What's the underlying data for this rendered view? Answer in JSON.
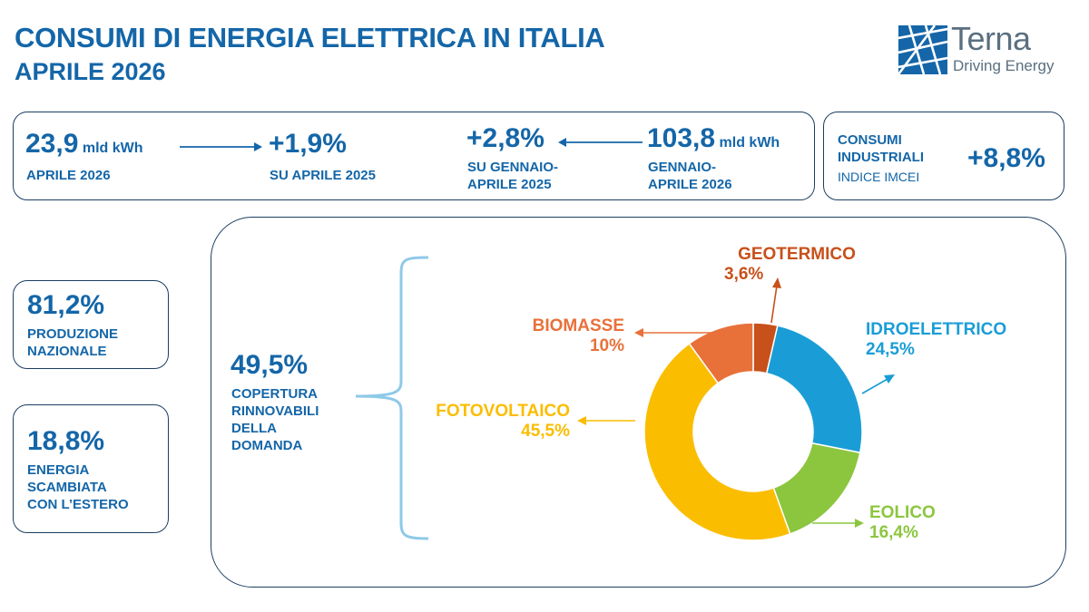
{
  "header": {
    "title": "CONSUMI DI ENERGIA ELETTRICA IN ITALIA",
    "subtitle": "APRILE 2026"
  },
  "logo": {
    "word": "Terna",
    "tagline": "Driving Energy"
  },
  "kpi_top": {
    "monthly": {
      "value": "23,9",
      "unit": "mld kWh",
      "label": "APRILE 2026"
    },
    "monthly_change": {
      "value": "+1,9%",
      "label": "SU APRILE 2025"
    },
    "ytd_change": {
      "value": "+2,8%",
      "label_line1": "SU GENNAIO-",
      "label_line2": "APRILE 2025"
    },
    "ytd": {
      "value": "103,8",
      "unit": "mld kWh",
      "label_line1": "GENNAIO-",
      "label_line2": "APRILE 2026"
    }
  },
  "industrial": {
    "label_line1": "CONSUMI",
    "label_line2": "INDUSTRIALI",
    "sublabel": "INDICE IMCEI",
    "value": "+8,8%"
  },
  "national": {
    "value": "81,2%",
    "label_line1": "PRODUZIONE",
    "label_line2": "NAZIONALE"
  },
  "exchange": {
    "value": "18,8%",
    "label_line1": "ENERGIA",
    "label_line2": "SCAMBIATA",
    "label_line3": "CON L’ESTERO"
  },
  "renewables": {
    "value": "49,5%",
    "label_line1": "COPERTURA",
    "label_line2": "RINNOVABILI",
    "label_line3": "DELLA",
    "label_line4": "DOMANDA"
  },
  "colors": {
    "brand": "#1466a8",
    "bracket": "#8ec9e8"
  },
  "chart_data": {
    "type": "pie",
    "donut": true,
    "series": [
      {
        "name": "GEOTERMICO",
        "value": 3.6,
        "value_label": "3,6%",
        "color": "#c8501a"
      },
      {
        "name": "IDROELETTRICO",
        "value": 24.5,
        "value_label": "24,5%",
        "color": "#1a9dd6"
      },
      {
        "name": "EOLICO",
        "value": 16.4,
        "value_label": "16,4%",
        "color": "#8cc63f"
      },
      {
        "name": "FOTOVOLTAICO",
        "value": 45.5,
        "value_label": "45,5%",
        "color": "#fbbd00"
      },
      {
        "name": "BIOMASSE",
        "value": 10,
        "value_label": "10%",
        "color": "#e8713a"
      }
    ]
  }
}
